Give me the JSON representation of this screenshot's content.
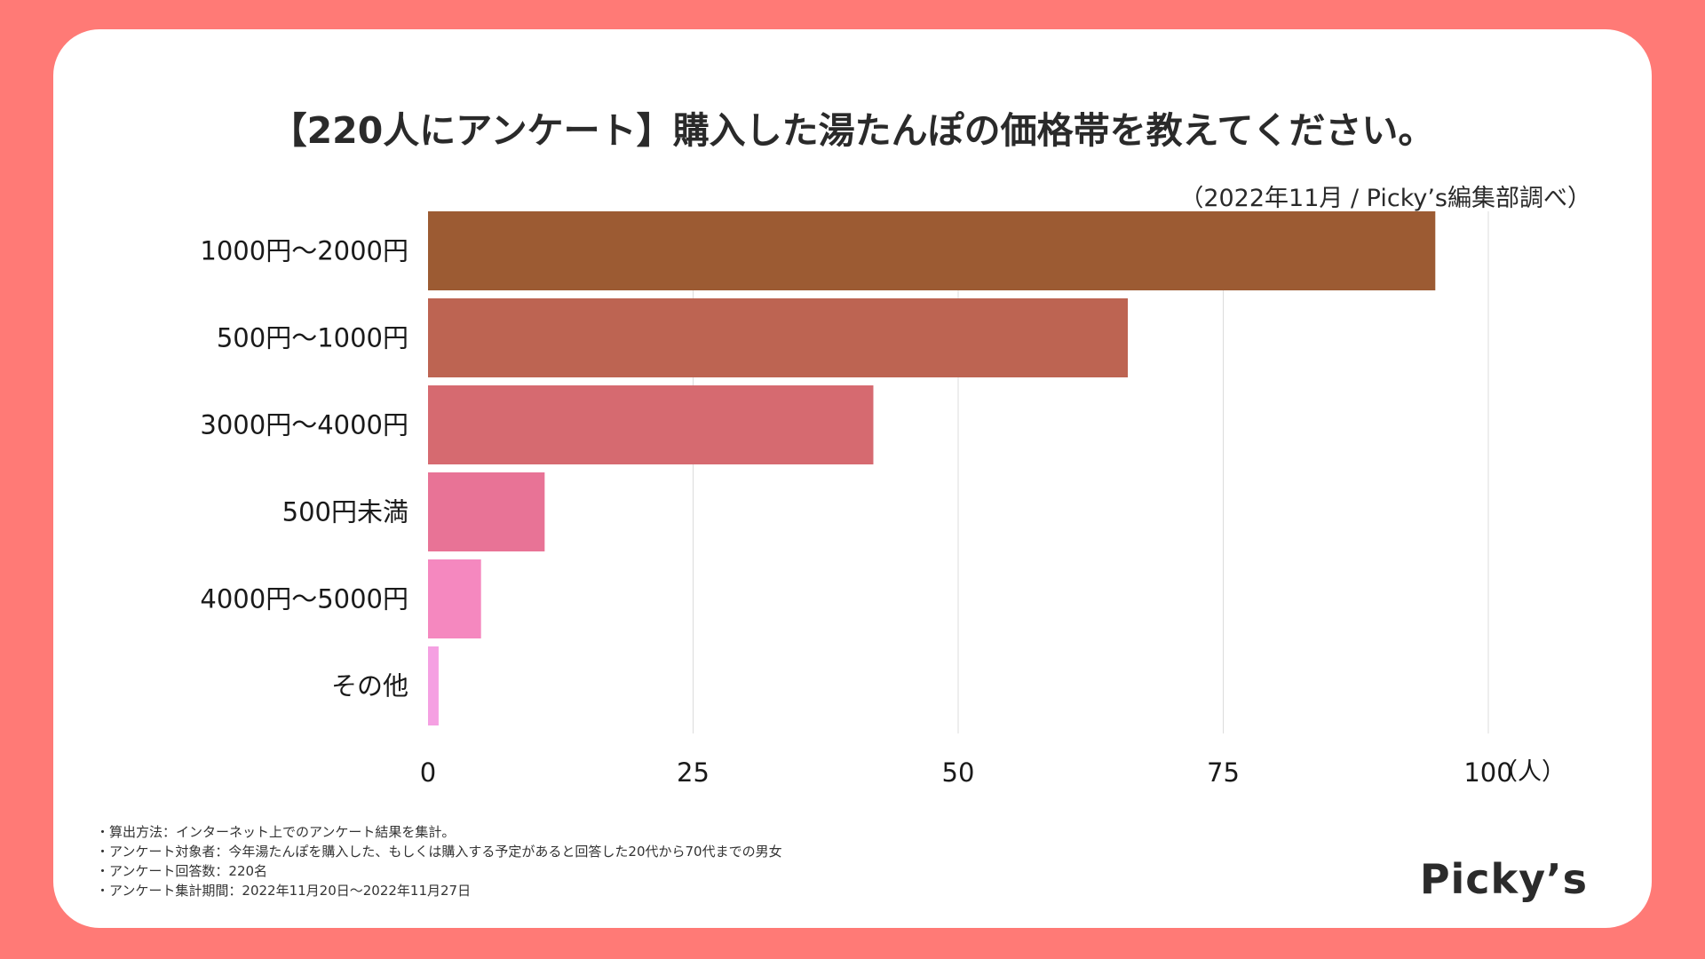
{
  "title": "【220人にアンケート】購入した湯たんぽの価格帯を教えてください。",
  "source": "（2022年11月 / Picky’s編集部調べ）",
  "chart_data": {
    "type": "bar",
    "orientation": "horizontal",
    "categories": [
      "1000円〜2000円",
      "500円〜1000円",
      "3000円〜4000円",
      "500円未満",
      "4000円〜5000円",
      "その他"
    ],
    "values": [
      95,
      66,
      42,
      11,
      5,
      1
    ],
    "colors": [
      "#9c5b33",
      "#bd6452",
      "#d66a70",
      "#e87396",
      "#f588bf",
      "#f5a0e2"
    ],
    "xticks": [
      0,
      25,
      50,
      75,
      100
    ],
    "xlim": [
      0,
      100
    ],
    "xunit": "（人）",
    "grid": true,
    "legend": "none"
  },
  "notes": [
    "・算出方法：インターネット上でのアンケート結果を集計。",
    "・アンケート対象者：今年湯たんぽを購入した、もしくは購入する予定があると回答した20代から70代までの男女",
    "・アンケート回答数：220名",
    "・アンケート集計期間：2022年11月20日〜2022年11月27日"
  ],
  "logo_text": "Picky’s"
}
